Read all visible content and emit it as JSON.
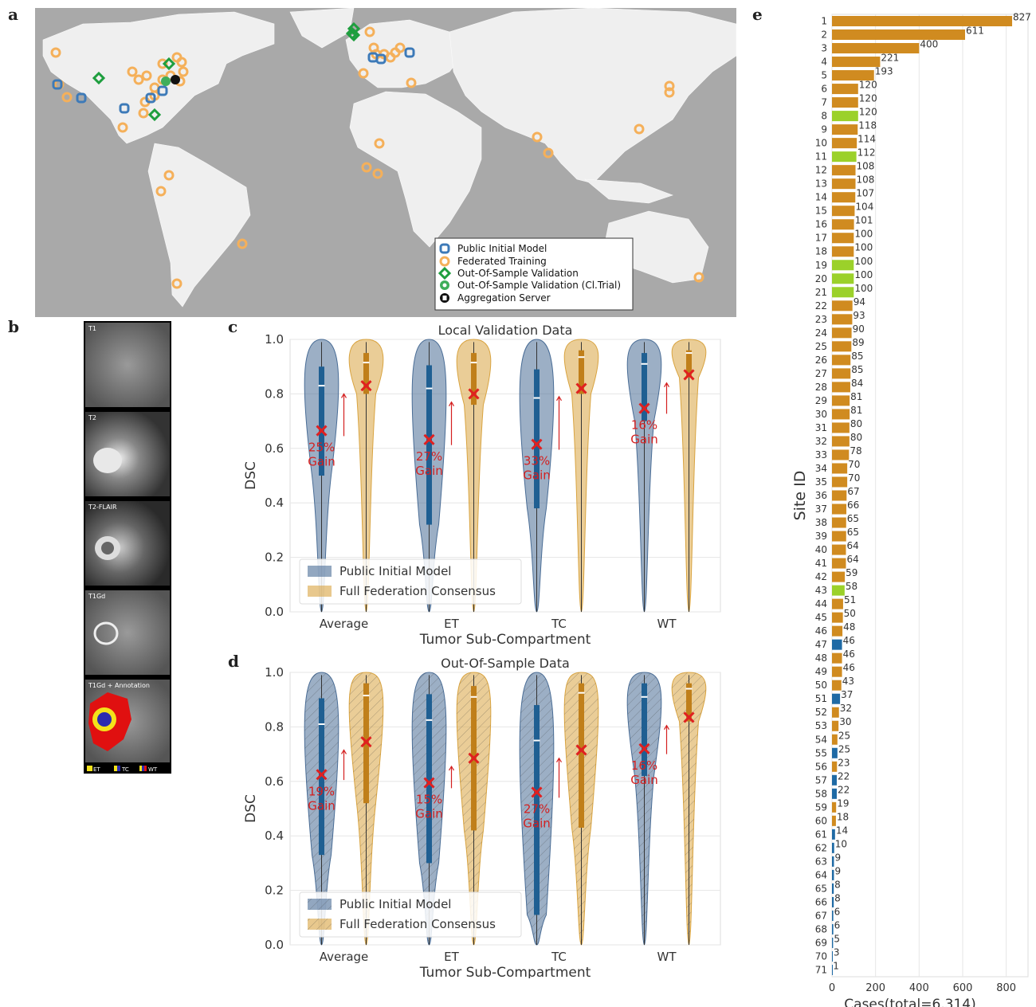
{
  "panel_labels": {
    "a": "a",
    "b": "b",
    "c": "c",
    "d": "d",
    "e": "e"
  },
  "map": {
    "legend": [
      {
        "label": "Public Initial Model",
        "color": "#3d7ab8",
        "icon": "square-ring-icon"
      },
      {
        "label": "Federated Training",
        "color": "#f5b05a",
        "icon": "ring-icon"
      },
      {
        "label": "Out-Of-Sample Validation",
        "color": "#1e9e3e",
        "icon": "diamond-ring-icon"
      },
      {
        "label": "Out-Of-Sample Validation (Cl.Trial)",
        "color": "#3fae5a",
        "icon": "gear-icon"
      },
      {
        "label": "Aggregation Server",
        "color": "#111111",
        "icon": "server-icon"
      }
    ]
  },
  "brain": {
    "frames": [
      "T1",
      "T2",
      "T2-FLAIR",
      "T1Gd",
      "T1Gd + Annotation"
    ],
    "legend": [
      "ET",
      "TC",
      "WT"
    ]
  },
  "colors": {
    "initial": "#4a6d96",
    "consensus": "#d9a441",
    "initial_box": "#1f5f92",
    "consensus_box": "#c07f1a",
    "mean_marker": "#e02020",
    "gain_text": "#d42020",
    "bar_orange": "#d08b20",
    "bar_green": "#9bd12a",
    "bar_blue": "#1f6aa5"
  },
  "chart_data": [
    {
      "type": "violin",
      "title": "Local Validation Data",
      "xlabel": "Tumor Sub-Compartment",
      "ylabel": "DSC",
      "ylim": [
        0,
        1
      ],
      "yticks": [
        "0.0",
        "0.2",
        "0.4",
        "0.6",
        "0.8",
        "1.0"
      ],
      "categories": [
        "Average",
        "ET",
        "TC",
        "WT"
      ],
      "legend": [
        "Public Initial Model",
        "Full Federation Consensus"
      ],
      "legend_position": "bottom-left",
      "series": [
        {
          "name": "Public Initial Model",
          "mean": [
            0.665,
            0.632,
            0.615,
            0.747
          ],
          "median": [
            0.83,
            0.82,
            0.785,
            0.91
          ],
          "q1": [
            0.5,
            0.32,
            0.38,
            0.7
          ],
          "q3": [
            0.9,
            0.905,
            0.89,
            0.95
          ]
        },
        {
          "name": "Full Federation Consensus",
          "mean": [
            0.83,
            0.8,
            0.82,
            0.87
          ],
          "median": [
            0.915,
            0.915,
            0.935,
            0.95
          ],
          "q1": [
            0.8,
            0.76,
            0.8,
            0.86
          ],
          "q3": [
            0.95,
            0.95,
            0.96,
            0.96
          ]
        }
      ],
      "gains": [
        "25%\nGain",
        "27%\nGain",
        "33%\nGain",
        "16%\nGain"
      ]
    },
    {
      "type": "violin",
      "title": "Out-Of-Sample Data",
      "xlabel": "Tumor Sub-Compartment",
      "ylabel": "DSC",
      "ylim": [
        0,
        1
      ],
      "yticks": [
        "0.0",
        "0.2",
        "0.4",
        "0.6",
        "0.8",
        "1.0"
      ],
      "categories": [
        "Average",
        "ET",
        "TC",
        "WT"
      ],
      "legend": [
        "Public Initial Model",
        "Full Federation Consensus"
      ],
      "legend_position": "bottom-left",
      "series": [
        {
          "name": "Public Initial Model",
          "mean": [
            0.625,
            0.595,
            0.56,
            0.72
          ],
          "median": [
            0.81,
            0.825,
            0.75,
            0.91
          ],
          "q1": [
            0.33,
            0.3,
            0.11,
            0.62
          ],
          "q3": [
            0.905,
            0.92,
            0.88,
            0.96
          ]
        },
        {
          "name": "Full Federation Consensus",
          "mean": [
            0.745,
            0.685,
            0.715,
            0.835
          ],
          "median": [
            0.915,
            0.91,
            0.925,
            0.94
          ],
          "q1": [
            0.52,
            0.42,
            0.43,
            0.82
          ],
          "q3": [
            0.96,
            0.95,
            0.96,
            0.96
          ]
        }
      ],
      "gains": [
        "19%\nGain",
        "15%\nGain",
        "27%\nGain",
        "16%\nGain"
      ]
    },
    {
      "type": "bar",
      "orientation": "horizontal",
      "xlabel": "Cases(total=6,314)",
      "ylabel": "Site ID",
      "xlim": [
        0,
        900
      ],
      "xticks": [
        "0",
        "200",
        "400",
        "600",
        "800"
      ],
      "grid": true,
      "categories": [
        "1",
        "2",
        "3",
        "4",
        "5",
        "6",
        "7",
        "8",
        "9",
        "10",
        "11",
        "12",
        "13",
        "14",
        "15",
        "16",
        "17",
        "18",
        "19",
        "20",
        "21",
        "22",
        "23",
        "24",
        "25",
        "26",
        "27",
        "28",
        "29",
        "30",
        "31",
        "32",
        "33",
        "34",
        "35",
        "36",
        "37",
        "38",
        "39",
        "40",
        "41",
        "42",
        "43",
        "44",
        "45",
        "46",
        "47",
        "48",
        "49",
        "50",
        "51",
        "52",
        "53",
        "54",
        "55",
        "56",
        "57",
        "58",
        "59",
        "60",
        "61",
        "62",
        "63",
        "64",
        "65",
        "66",
        "67",
        "68",
        "69",
        "70",
        "71"
      ],
      "values": [
        827,
        611,
        400,
        221,
        193,
        120,
        120,
        120,
        118,
        114,
        112,
        108,
        108,
        107,
        104,
        101,
        100,
        100,
        100,
        100,
        100,
        94,
        93,
        90,
        89,
        85,
        85,
        84,
        81,
        81,
        80,
        80,
        78,
        70,
        70,
        67,
        66,
        65,
        65,
        64,
        64,
        59,
        58,
        51,
        50,
        48,
        46,
        46,
        46,
        43,
        37,
        32,
        30,
        25,
        25,
        23,
        22,
        22,
        19,
        18,
        14,
        10,
        9,
        9,
        8,
        8,
        6,
        6,
        5,
        3,
        1
      ],
      "groups": [
        "o",
        "o",
        "o",
        "o",
        "o",
        "o",
        "o",
        "g",
        "o",
        "o",
        "g",
        "o",
        "o",
        "o",
        "o",
        "o",
        "o",
        "o",
        "g",
        "g",
        "g",
        "o",
        "o",
        "o",
        "o",
        "o",
        "o",
        "o",
        "o",
        "o",
        "o",
        "o",
        "o",
        "o",
        "o",
        "o",
        "o",
        "o",
        "o",
        "o",
        "o",
        "o",
        "g",
        "o",
        "o",
        "o",
        "b",
        "o",
        "o",
        "o",
        "b",
        "o",
        "o",
        "o",
        "b",
        "o",
        "b",
        "b",
        "o",
        "o",
        "b",
        "b",
        "b",
        "b",
        "b",
        "b",
        "b",
        "b",
        "b",
        "b",
        "b"
      ]
    }
  ]
}
